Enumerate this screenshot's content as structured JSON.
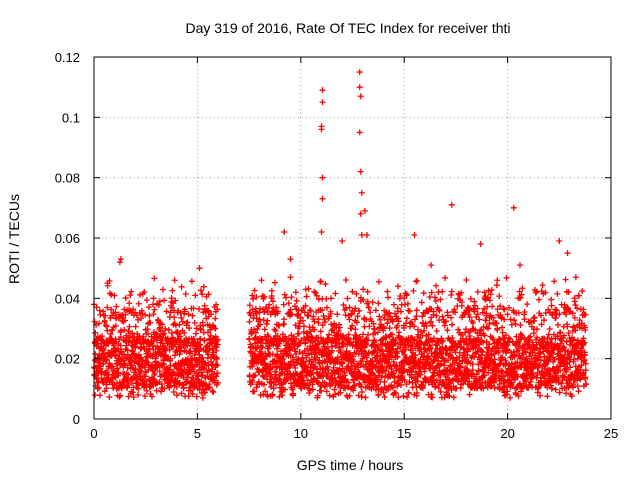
{
  "chart_data": {
    "type": "scatter",
    "title": "Day 319 of 2016, Rate Of TEC Index for receiver thti",
    "xlabel": "GPS time / hours",
    "ylabel": "ROTI / TECUs",
    "xlim": [
      0,
      25
    ],
    "ylim": [
      0,
      0.12
    ],
    "xticks": [
      0,
      5,
      10,
      15,
      20,
      25
    ],
    "yticks": [
      0,
      0.02,
      0.04,
      0.06,
      0.08,
      0.1,
      0.12
    ],
    "xtick_labels": [
      "0",
      "5",
      "10",
      "15",
      "20",
      "25"
    ],
    "ytick_labels": [
      "0",
      "0.02",
      "0.04",
      "0.06",
      "0.08",
      "0.1",
      "0.12"
    ],
    "grid": true,
    "marker": "plus",
    "color": "#ff0000",
    "observed_segments": [
      [
        0.0,
        6.0
      ],
      [
        7.5,
        10.9
      ],
      [
        10.9,
        23.8
      ]
    ],
    "notable_points": [
      {
        "x": 1.25,
        "y": 0.052
      },
      {
        "x": 1.3,
        "y": 0.053
      },
      {
        "x": 5.1,
        "y": 0.05
      },
      {
        "x": 9.2,
        "y": 0.062
      },
      {
        "x": 9.5,
        "y": 0.053
      },
      {
        "x": 11.05,
        "y": 0.109
      },
      {
        "x": 11.05,
        "y": 0.105
      },
      {
        "x": 11.0,
        "y": 0.097
      },
      {
        "x": 11.0,
        "y": 0.096
      },
      {
        "x": 11.05,
        "y": 0.08
      },
      {
        "x": 11.05,
        "y": 0.073
      },
      {
        "x": 11.0,
        "y": 0.062
      },
      {
        "x": 12.85,
        "y": 0.115
      },
      {
        "x": 12.85,
        "y": 0.11
      },
      {
        "x": 12.9,
        "y": 0.107
      },
      {
        "x": 12.85,
        "y": 0.095
      },
      {
        "x": 12.9,
        "y": 0.082
      },
      {
        "x": 12.95,
        "y": 0.075
      },
      {
        "x": 12.9,
        "y": 0.068
      },
      {
        "x": 13.1,
        "y": 0.069
      },
      {
        "x": 12.95,
        "y": 0.061
      },
      {
        "x": 13.2,
        "y": 0.061
      },
      {
        "x": 12.0,
        "y": 0.059
      },
      {
        "x": 15.5,
        "y": 0.061
      },
      {
        "x": 17.3,
        "y": 0.071
      },
      {
        "x": 20.3,
        "y": 0.07
      },
      {
        "x": 18.7,
        "y": 0.058
      },
      {
        "x": 22.5,
        "y": 0.059
      },
      {
        "x": 22.9,
        "y": 0.055
      },
      {
        "x": 8.1,
        "y": 0.046
      },
      {
        "x": 9.5,
        "y": 0.047
      },
      {
        "x": 3.9,
        "y": 0.046
      },
      {
        "x": 0.65,
        "y": 0.045
      },
      {
        "x": 16.3,
        "y": 0.051
      },
      {
        "x": 19.5,
        "y": 0.046
      },
      {
        "x": 20.6,
        "y": 0.051
      },
      {
        "x": 23.3,
        "y": 0.047
      },
      {
        "x": 14.7,
        "y": 0.044
      }
    ],
    "background_density": {
      "typical_low": 0.005,
      "typical_high": 0.035,
      "sample_spacing_hours": 0.006,
      "seed": 319
    }
  }
}
